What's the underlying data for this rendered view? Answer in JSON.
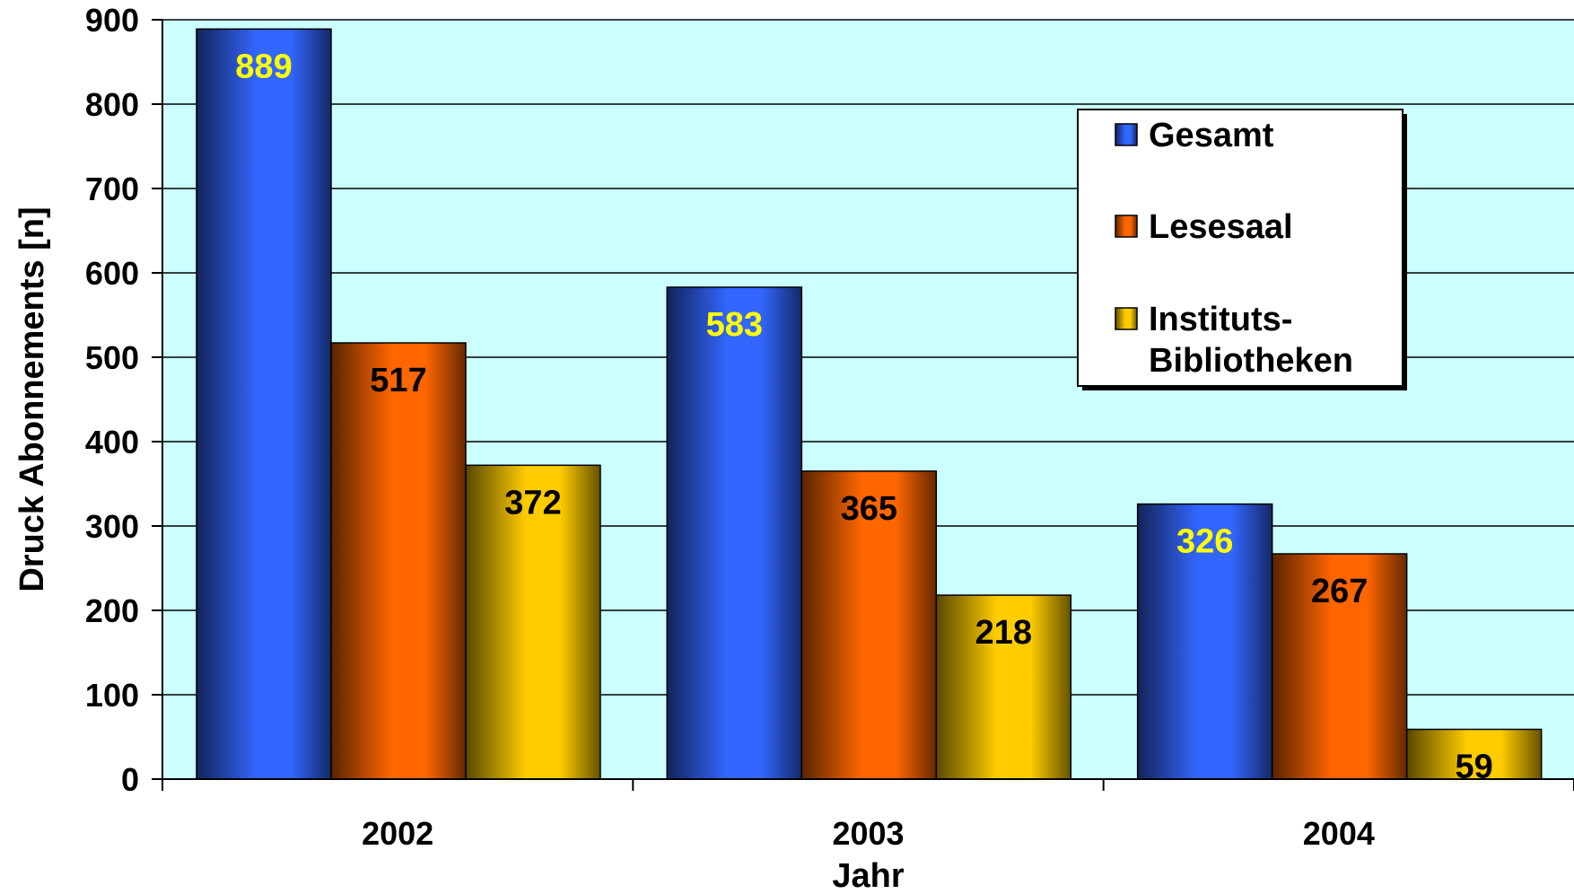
{
  "chart_data": {
    "type": "bar",
    "categories": [
      "2002",
      "2003",
      "2004"
    ],
    "series": [
      {
        "name": "Gesamt",
        "values": [
          889,
          583,
          326
        ],
        "color": "#3366ff",
        "label_color": "#ffff00"
      },
      {
        "name": "Lesesaal",
        "values": [
          517,
          365,
          267
        ],
        "color": "#ff6600",
        "label_color": "#000000"
      },
      {
        "name": "Instituts-Bibliotheken",
        "legend_lines": [
          "Instituts-",
          "Bibliotheken"
        ],
        "values": [
          372,
          218,
          59
        ],
        "color": "#ffcc00",
        "label_color": "#000000"
      }
    ],
    "title": "",
    "xlabel": "Jahr",
    "ylabel": "Druck Abonnements [n]",
    "ylim": [
      0,
      900
    ],
    "yticks": [
      0,
      100,
      200,
      300,
      400,
      500,
      600,
      700,
      800,
      900
    ],
    "grid": true,
    "legend_position": "top-right",
    "plot_background": "#ccffff"
  }
}
